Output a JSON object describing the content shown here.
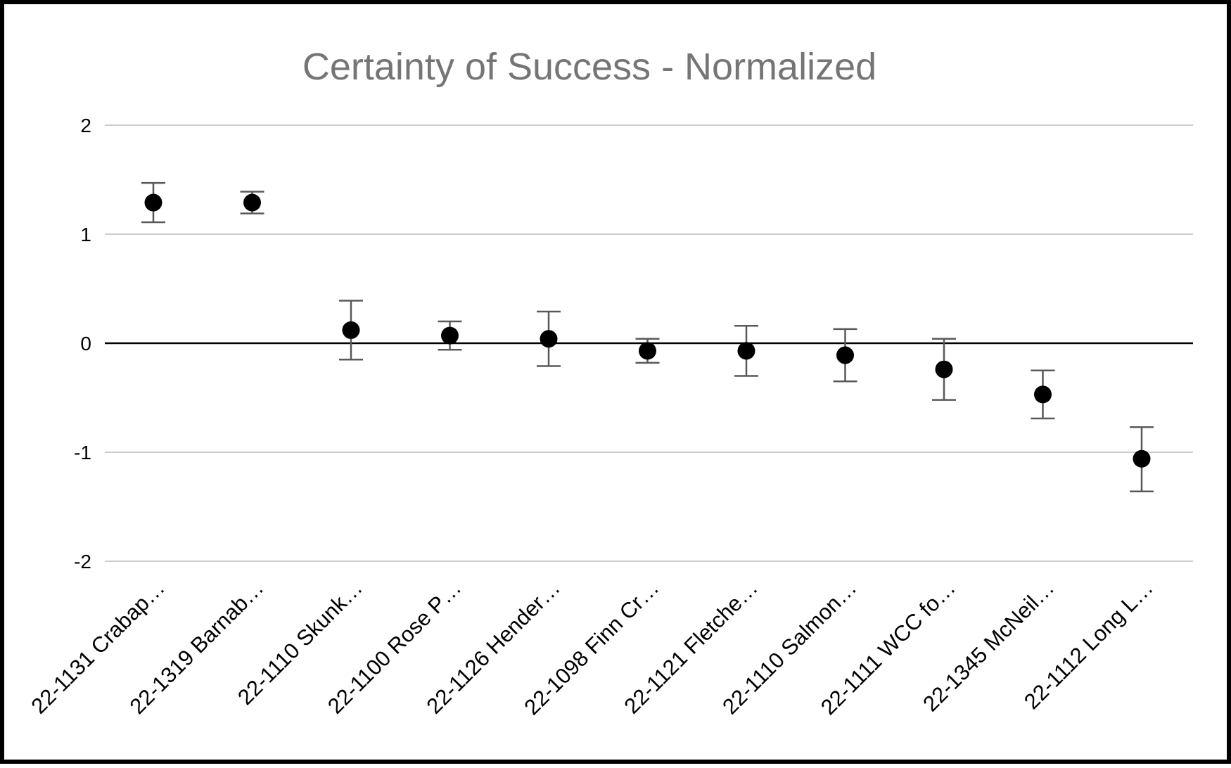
{
  "chart_data": {
    "type": "scatter",
    "title": "Certainty of Success - Normalized",
    "xlabel": "",
    "ylabel": "",
    "ylim": [
      -2,
      2
    ],
    "yticks": [
      2,
      1,
      0,
      -1,
      -2
    ],
    "grid": true,
    "legend": "none",
    "error_bars": true,
    "colors": {
      "point": "#000000",
      "error_bar": "#595959",
      "gridline": "#cccccc",
      "zero_line": "#000000",
      "title": "#757575"
    },
    "categories": [
      "22-1131 Crabap…",
      "22-1319 Barnab…",
      "22-1110 Skunk…",
      "22-1100 Rose P…",
      "22-1126 Hender…",
      "22-1098 Finn Cr…",
      "22-1121 Fletche…",
      "22-1110 Salmon…",
      "22-1111 WCC fo…",
      "22-1345 McNeil…",
      "22-1112 Long L…"
    ],
    "series": [
      {
        "values": [
          1.29,
          1.29,
          0.12,
          0.07,
          0.04,
          -0.07,
          -0.07,
          -0.11,
          -0.24,
          -0.47,
          -1.06
        ],
        "error_low": [
          1.11,
          1.19,
          -0.15,
          -0.06,
          -0.21,
          -0.18,
          -0.3,
          -0.35,
          -0.52,
          -0.69,
          -1.36
        ],
        "error_high": [
          1.47,
          1.39,
          0.39,
          0.2,
          0.29,
          0.04,
          0.16,
          0.13,
          0.04,
          -0.25,
          -0.77
        ]
      }
    ]
  }
}
